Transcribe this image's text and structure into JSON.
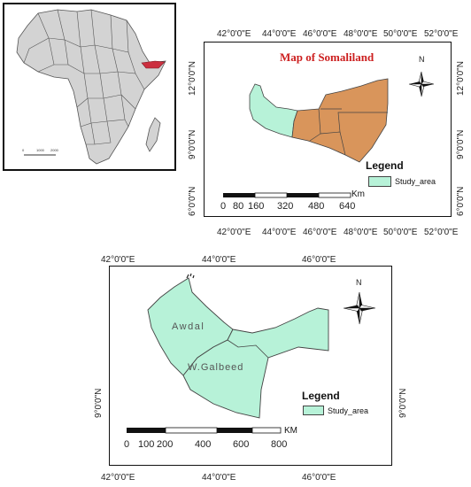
{
  "map_overview": {
    "title": "Map of Somaliland",
    "longitude_labels": [
      "42°0'0\"E",
      "44°0'0\"E",
      "46°0'0\"E",
      "48°0'0\"E",
      "50°0'0\"E",
      "52°0'0\"E"
    ],
    "latitude_labels": [
      "12°0'0\"N",
      "9°0'0\"N",
      "6°0'0\"N"
    ],
    "north_label": "N",
    "legend": {
      "title": "Legend",
      "items": [
        {
          "label": "Study_area",
          "color": "#b7f2d8"
        }
      ]
    },
    "scalebar": {
      "unit": "Km",
      "ticks": [
        "0",
        "80",
        "160",
        "320",
        "480",
        "640"
      ]
    },
    "colors": {
      "study_area": "#b7f2d8",
      "other_regions": "#d9955b"
    }
  },
  "map_study": {
    "longitude_labels": [
      "42°0'0\"E",
      "44°0'0\"E",
      "46°0'0\"E"
    ],
    "latitude_labels": [
      "9°0'0\"N"
    ],
    "north_label": "N",
    "regions": [
      "Awdal",
      "W.Galbeed"
    ],
    "legend": {
      "title": "Legend",
      "items": [
        {
          "label": "Study_area",
          "color": "#b7f2d8"
        }
      ]
    },
    "scalebar": {
      "unit": "KM",
      "ticks": [
        "0",
        "100",
        "200",
        "400",
        "600",
        "800"
      ]
    }
  },
  "inset": {
    "highlight_color": "#cc2f3f",
    "land_color": "#d3d3d3",
    "scale_text": [
      "0",
      "1000",
      "2000"
    ]
  }
}
